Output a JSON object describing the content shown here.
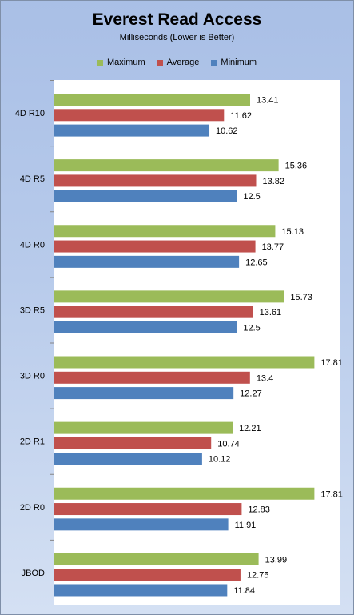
{
  "chart_data": {
    "type": "bar",
    "orientation": "horizontal",
    "title": "Everest Read Access",
    "subtitle": "Milliseconds (Lower is Better)",
    "categories": [
      "4D R10",
      "4D R5",
      "4D R0",
      "3D R5",
      "3D R0",
      "2D R1",
      "2D R0",
      "JBOD"
    ],
    "series": [
      {
        "name": "Maximum",
        "color": "#9bbb59",
        "values": [
          13.41,
          15.36,
          15.13,
          15.73,
          17.81,
          12.21,
          17.81,
          13.99
        ]
      },
      {
        "name": "Average",
        "color": "#c0504d",
        "values": [
          11.62,
          13.82,
          13.77,
          13.61,
          13.4,
          10.74,
          12.83,
          12.75
        ]
      },
      {
        "name": "Minimum",
        "color": "#4f81bd",
        "values": [
          10.62,
          12.5,
          12.65,
          12.5,
          12.27,
          10.12,
          11.91,
          11.84
        ]
      }
    ],
    "xlim": [
      0,
      20
    ],
    "legend_position": "top",
    "grid": false,
    "data_labels": true
  }
}
